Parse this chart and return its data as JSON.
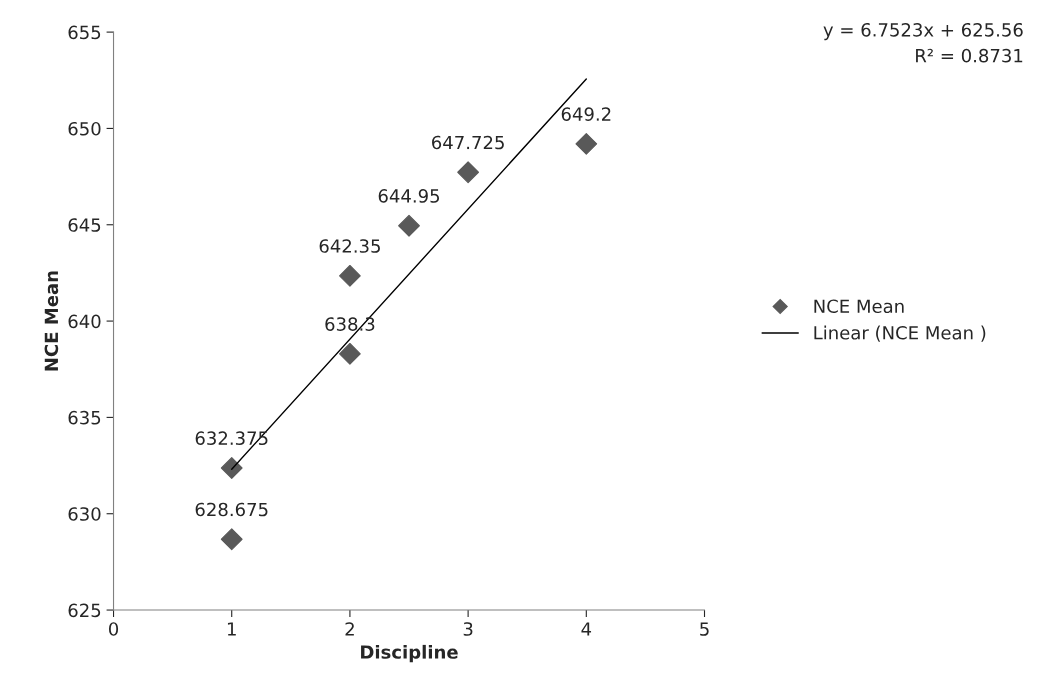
{
  "chart_data": {
    "type": "scatter",
    "xlabel": "Discipline",
    "ylabel": "NCE Mean",
    "xlim": [
      0,
      5
    ],
    "xticks": [
      0,
      1,
      2,
      3,
      4,
      5
    ],
    "ylim": [
      625,
      655
    ],
    "yticks": [
      625,
      630,
      635,
      640,
      645,
      650,
      655
    ],
    "grid": false,
    "legend": "right",
    "annotations": [
      "y = 6.7523x + 625.56",
      "R² = 0.8731"
    ],
    "series": [
      {
        "name": "NCE Mean",
        "color": "#595959",
        "marker": "diamond",
        "x": [
          1,
          1,
          2,
          2,
          2.5,
          3,
          4
        ],
        "values": [
          628.675,
          632.375,
          638.3,
          642.35,
          644.95,
          647.725,
          649.2
        ],
        "value_labels": [
          "628.675",
          "632.375",
          "638.3",
          "642.35",
          "644.95",
          "647.725",
          "649.2"
        ]
      },
      {
        "name": "Linear (NCE Mean )",
        "type": "line",
        "color": "#000000",
        "marker": "none",
        "line_style": "solid",
        "x": [
          1,
          4
        ],
        "values": [
          632.31,
          652.57
        ]
      }
    ]
  }
}
